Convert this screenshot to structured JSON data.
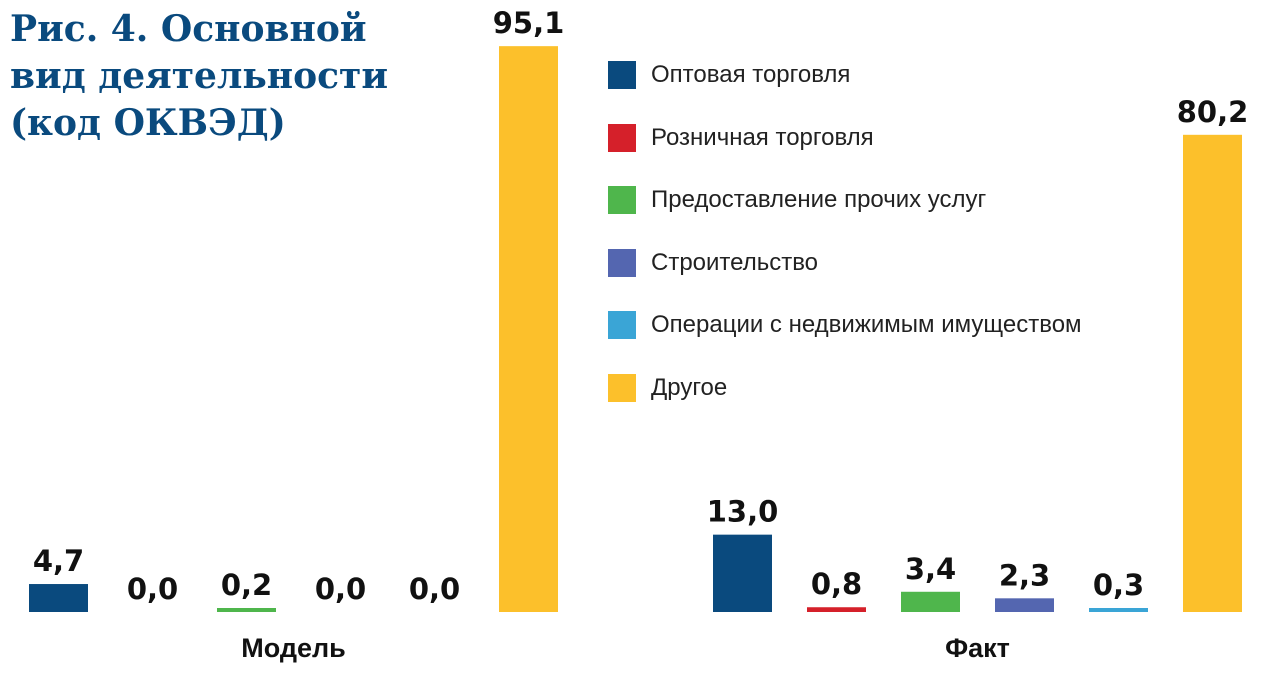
{
  "title": "Рис. 4. Основной\nвид деятельности\n(код ОКВЭД)",
  "chart_data": {
    "type": "bar",
    "categories": [
      "Модель",
      "Факт"
    ],
    "series": [
      {
        "name": "Оптовая торговля",
        "color": "#0a4a7e",
        "values": [
          4.7,
          13.0
        ],
        "labels": [
          "4,7",
          "13,0"
        ]
      },
      {
        "name": "Розничная торговля",
        "color": "#d5202a",
        "values": [
          0.0,
          0.8
        ],
        "labels": [
          "0,0",
          "0,8"
        ]
      },
      {
        "name": "Предоставление прочих услуг",
        "color": "#4fb64c",
        "values": [
          0.2,
          3.4
        ],
        "labels": [
          "0,2",
          "3,4"
        ]
      },
      {
        "name": "Строительство",
        "color": "#5466b0",
        "values": [
          0.0,
          2.3
        ],
        "labels": [
          "0,0",
          "2,3"
        ]
      },
      {
        "name": "Операции с недвижимым имуществом",
        "color": "#3aa5d6",
        "values": [
          0.0,
          0.3
        ],
        "labels": [
          "0,0",
          "0,3"
        ]
      },
      {
        "name": "Другое",
        "color": "#fcc02b",
        "values": [
          95.1,
          80.2
        ],
        "labels": [
          "95,1",
          "80,2"
        ]
      }
    ],
    "legend_position": "top-center",
    "grid": false
  }
}
